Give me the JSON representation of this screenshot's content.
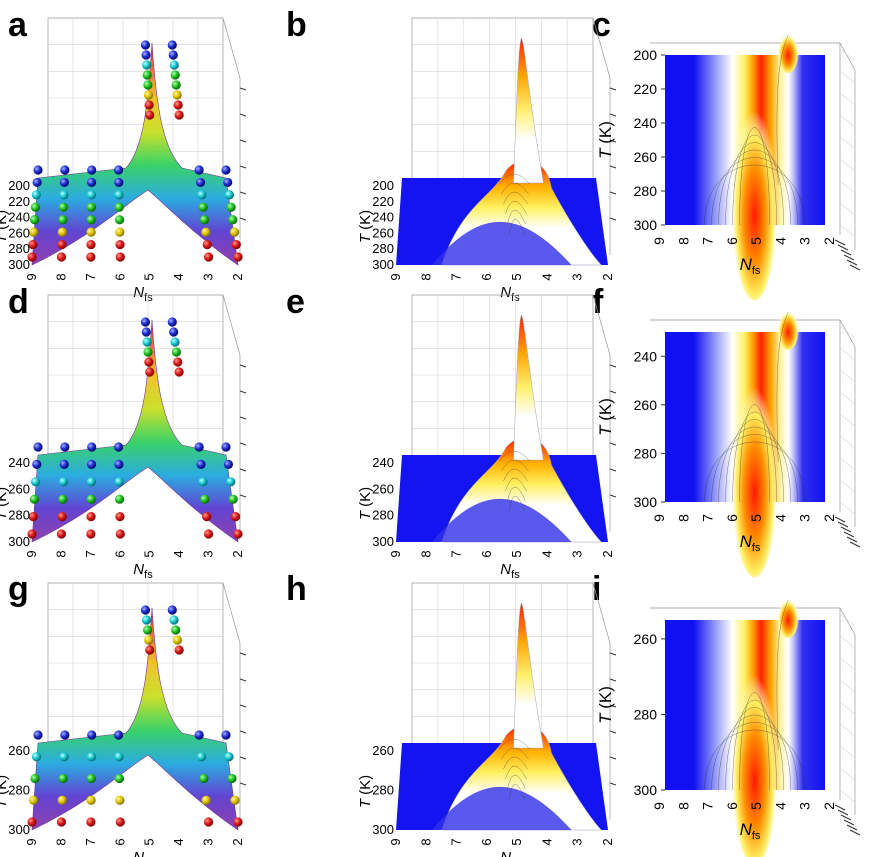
{
  "figure": {
    "panel_labels": [
      "a",
      "b",
      "c",
      "d",
      "e",
      "f",
      "g",
      "h",
      "i"
    ],
    "x_axis_label": "N",
    "x_axis_subscript": "fs",
    "y_axis_label_symbol": "T",
    "y_axis_label_unit": "(K)"
  },
  "colors": {
    "surface_low": "#1414f0",
    "surface_mid": "#ffffff",
    "surface_high": "#ff0000",
    "rainbow_low": "#8b36a8",
    "sphere_colors": [
      "#d81b1b",
      "#e8d000",
      "#2ecc2e",
      "#1fd0d0",
      "#2030d0"
    ]
  },
  "chart_data": [
    {
      "panel": "a",
      "type": "surface3d",
      "style": "rainbow-surface-with-spheres",
      "x": [
        9,
        8,
        7,
        6,
        5,
        4,
        3,
        2
      ],
      "x_ticks": [
        "9",
        "8",
        "7",
        "6",
        "5",
        "4",
        "3",
        "2"
      ],
      "y_ticks": [
        "200",
        "220",
        "240",
        "260",
        "280",
        "300"
      ],
      "ylim": [
        200,
        300
      ],
      "xlabel": "N_fs",
      "ylabel": "T (K)",
      "peak_at_x": 4.7
    },
    {
      "panel": "b",
      "type": "surface3d",
      "style": "bwr-contour-surface",
      "x_ticks": [
        "9",
        "8",
        "7",
        "6",
        "5",
        "4",
        "3",
        "2"
      ],
      "y_ticks": [
        "200",
        "220",
        "240",
        "260",
        "280",
        "300"
      ],
      "ylim": [
        200,
        300
      ],
      "xlabel": "N_fs",
      "ylabel": "T (K)",
      "peak_at_x": 4.7
    },
    {
      "panel": "c",
      "type": "heatmap",
      "style": "top-view-contour",
      "x_ticks": [
        "9",
        "8",
        "7",
        "6",
        "5",
        "4",
        "3",
        "2"
      ],
      "y_ticks": [
        "200",
        "220",
        "240",
        "260",
        "280",
        "300"
      ],
      "ylim": [
        200,
        300
      ],
      "xlabel": "N_fs",
      "ylabel": "T (K)",
      "ridge_main_x": 5.0,
      "ridge_secondary_x": 3.6
    },
    {
      "panel": "d",
      "type": "surface3d",
      "style": "rainbow-surface-with-spheres",
      "x_ticks": [
        "9",
        "8",
        "7",
        "6",
        "5",
        "4",
        "3",
        "2"
      ],
      "y_ticks": [
        "240",
        "260",
        "280",
        "300"
      ],
      "ylim": [
        240,
        300
      ],
      "xlabel": "N_fs",
      "ylabel": "T (K)",
      "peak_at_x": 4.7
    },
    {
      "panel": "e",
      "type": "surface3d",
      "style": "bwr-contour-surface",
      "x_ticks": [
        "9",
        "8",
        "7",
        "6",
        "5",
        "4",
        "3",
        "2"
      ],
      "y_ticks": [
        "240",
        "260",
        "280",
        "300"
      ],
      "ylim": [
        240,
        300
      ],
      "xlabel": "N_fs",
      "ylabel": "T (K)",
      "peak_at_x": 4.7
    },
    {
      "panel": "f",
      "type": "heatmap",
      "style": "top-view-contour",
      "x_ticks": [
        "9",
        "8",
        "7",
        "6",
        "5",
        "4",
        "3",
        "2"
      ],
      "y_ticks": [
        "240",
        "260",
        "280",
        "300"
      ],
      "ylim": [
        230,
        300
      ],
      "xlabel": "N_fs",
      "ylabel": "T (K)",
      "ridge_main_x": 5.0,
      "ridge_secondary_x": 3.6
    },
    {
      "panel": "g",
      "type": "surface3d",
      "style": "rainbow-surface-with-spheres",
      "x_ticks": [
        "9",
        "8",
        "7",
        "6",
        "5",
        "4",
        "3",
        "2"
      ],
      "y_ticks": [
        "260",
        "280",
        "300"
      ],
      "ylim": [
        260,
        300
      ],
      "xlabel": "N_fs",
      "ylabel": "T (K)",
      "peak_at_x": 4.7
    },
    {
      "panel": "h",
      "type": "surface3d",
      "style": "bwr-contour-surface",
      "x_ticks": [
        "9",
        "8",
        "7",
        "6",
        "5",
        "4",
        "3",
        "2"
      ],
      "y_ticks": [
        "260",
        "280",
        "300"
      ],
      "ylim": [
        260,
        300
      ],
      "xlabel": "N_fs",
      "ylabel": "T (K)",
      "peak_at_x": 4.7
    },
    {
      "panel": "i",
      "type": "heatmap",
      "style": "top-view-contour",
      "x_ticks": [
        "9",
        "8",
        "7",
        "6",
        "5",
        "4",
        "3",
        "2"
      ],
      "y_ticks": [
        "260",
        "280",
        "300"
      ],
      "ylim": [
        255,
        300
      ],
      "xlabel": "N_fs",
      "ylabel": "T (K)",
      "ridge_main_x": 5.0,
      "ridge_secondary_x": 3.6
    }
  ]
}
